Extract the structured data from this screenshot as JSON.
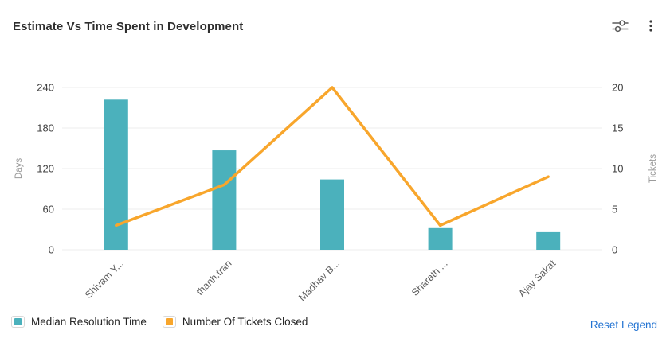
{
  "header": {
    "title": "Estimate Vs Time Spent in Development",
    "icons": [
      {
        "name": "sliders-settings-icon"
      },
      {
        "name": "kebab-menu-icon"
      }
    ]
  },
  "chart_data": {
    "type": "bar",
    "subtype": "combo bar+line, dual axis",
    "title": "Estimate Vs Time Spent in Development",
    "categories": [
      "Shivam Y...",
      "thanh.tran",
      "Madhav B...",
      "Sharath ...",
      "Ajay Sakat"
    ],
    "series": [
      {
        "name": "Median Resolution Time",
        "type": "bar",
        "axis": "left",
        "color": "#4BB1BC",
        "values": [
          222,
          147,
          104,
          32,
          26
        ]
      },
      {
        "name": "Number Of Tickets Closed",
        "type": "line",
        "axis": "right",
        "color": "#F8A62C",
        "values": [
          3,
          8,
          20,
          3,
          9
        ]
      }
    ],
    "left_axis": {
      "label": "Days",
      "ticks": [
        0,
        60,
        120,
        180,
        240
      ],
      "max": 240
    },
    "right_axis": {
      "label": "Tickets",
      "ticks": [
        0,
        5,
        10,
        15,
        20
      ],
      "max": 20
    },
    "grid": true,
    "legend_position": "bottom"
  },
  "legend": {
    "items": [
      {
        "label": "Median Resolution Time",
        "color": "#4BB1BC"
      },
      {
        "label": "Number Of Tickets Closed",
        "color": "#F8A62C"
      }
    ],
    "reset_label": "Reset Legend"
  },
  "colors": {
    "bar": "#4BB1BC",
    "line": "#F8A62C",
    "grid": "#ececec",
    "tick_text": "#414141",
    "axis_name": "#9b9b9b",
    "x_label": "#606060",
    "title": "#2e2e2e",
    "icon": "#5a5a5a",
    "reset_link": "#2273d2"
  }
}
